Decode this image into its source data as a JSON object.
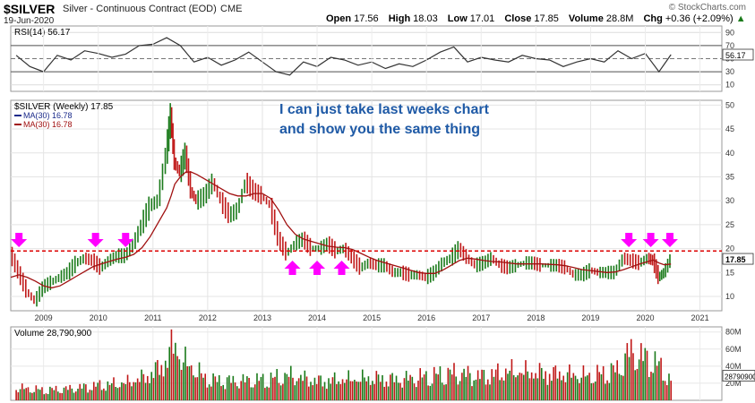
{
  "header": {
    "symbol": "$SILVER",
    "description": "Silver - Continuous Contract (EOD)",
    "exchange": "CME",
    "date": "19-Jun-2020",
    "brand": "© StockCharts.com",
    "ohlc": {
      "open_label": "Open",
      "open": "17.56",
      "high_label": "High",
      "high": "18.03",
      "low_label": "Low",
      "low": "17.01",
      "close_label": "Close",
      "close": "17.85",
      "volume_label": "Volume",
      "volume": "28.8M",
      "chg_label": "Chg",
      "chg": "+0.36 (+2.09%)",
      "chg_arrow": "▲"
    }
  },
  "annotation": {
    "line1": "I can just take last weeks chart",
    "line2": "and show you the same thing"
  },
  "colors": {
    "up": "#1a7a1a",
    "down": "#c01818",
    "ma": "#a01010",
    "rsi": "#333333",
    "arrow": "#ff00ff",
    "dashed": "#dd0000",
    "annotation": "#1f5aa6"
  },
  "chart_data": [
    {
      "type": "line",
      "panel": "rsi",
      "legend": "RSI(14) 56.17",
      "ylim": [
        0,
        100
      ],
      "yticks": [
        10,
        30,
        50,
        70,
        90
      ],
      "last_value_label": "56.17",
      "x": [
        2008.5,
        2008.75,
        2009.0,
        2009.25,
        2009.5,
        2009.75,
        2010.0,
        2010.25,
        2010.5,
        2010.75,
        2011.0,
        2011.25,
        2011.5,
        2011.75,
        2012.0,
        2012.25,
        2012.5,
        2012.75,
        2013.0,
        2013.25,
        2013.5,
        2013.75,
        2014.0,
        2014.25,
        2014.5,
        2014.75,
        2015.0,
        2015.25,
        2015.5,
        2015.75,
        2016.0,
        2016.25,
        2016.5,
        2016.75,
        2017.0,
        2017.25,
        2017.5,
        2017.75,
        2018.0,
        2018.25,
        2018.5,
        2018.75,
        2019.0,
        2019.25,
        2019.5,
        2019.75,
        2020.0,
        2020.25,
        2020.47
      ],
      "values": [
        55,
        38,
        30,
        55,
        48,
        62,
        58,
        52,
        57,
        70,
        72,
        82,
        70,
        45,
        52,
        40,
        48,
        60,
        45,
        30,
        25,
        45,
        38,
        52,
        48,
        40,
        45,
        35,
        42,
        38,
        48,
        60,
        68,
        45,
        52,
        48,
        45,
        55,
        50,
        48,
        38,
        45,
        50,
        45,
        62,
        50,
        58,
        30,
        56.17
      ]
    },
    {
      "type": "line",
      "panel": "price",
      "legend": "$SILVER (Weekly) 17.85",
      "ma_legend_1": "MA(30) 16.78",
      "ma_legend_2": "MA(30) 16.78",
      "ylim": [
        7,
        51
      ],
      "yticks": [
        10,
        15,
        20,
        25,
        30,
        35,
        40,
        45,
        50
      ],
      "xticks": [
        "2009",
        "2010",
        "2011",
        "2012",
        "2013",
        "2014",
        "2015",
        "2016",
        "2017",
        "2018",
        "2019",
        "2020",
        "2021"
      ],
      "xtick_values": [
        2009,
        2010,
        2011,
        2012,
        2013,
        2014,
        2015,
        2016,
        2017,
        2018,
        2019,
        2020,
        2021
      ],
      "last_value_label": "17.85",
      "resistance_level": 19.5,
      "x": [
        2008.4,
        2008.55,
        2008.7,
        2008.85,
        2009.0,
        2009.15,
        2009.3,
        2009.45,
        2009.6,
        2009.75,
        2009.9,
        2010.05,
        2010.2,
        2010.35,
        2010.5,
        2010.65,
        2010.8,
        2010.95,
        2011.1,
        2011.25,
        2011.33,
        2011.4,
        2011.5,
        2011.6,
        2011.7,
        2011.8,
        2011.95,
        2012.1,
        2012.25,
        2012.4,
        2012.55,
        2012.7,
        2012.85,
        2013.0,
        2013.15,
        2013.3,
        2013.45,
        2013.6,
        2013.75,
        2013.9,
        2014.05,
        2014.2,
        2014.35,
        2014.5,
        2014.65,
        2014.8,
        2014.95,
        2015.1,
        2015.25,
        2015.4,
        2015.55,
        2015.7,
        2015.85,
        2016.0,
        2016.15,
        2016.3,
        2016.45,
        2016.6,
        2016.75,
        2016.9,
        2017.05,
        2017.2,
        2017.35,
        2017.5,
        2017.65,
        2017.8,
        2017.95,
        2018.1,
        2018.25,
        2018.4,
        2018.55,
        2018.7,
        2018.85,
        2019.0,
        2019.15,
        2019.3,
        2019.45,
        2019.6,
        2019.75,
        2019.9,
        2020.05,
        2020.15,
        2020.25,
        2020.35,
        2020.47
      ],
      "close": [
        19,
        15,
        11,
        9,
        12,
        13,
        14,
        15,
        17,
        18,
        17.5,
        16,
        17.5,
        18.5,
        18.5,
        21,
        25,
        29,
        30,
        40,
        48,
        38,
        36,
        40,
        32,
        30,
        31,
        34,
        30,
        27,
        28,
        34,
        32,
        31,
        29,
        22,
        19,
        21,
        22,
        20,
        20,
        21,
        19.5,
        20,
        18,
        16,
        17,
        16.5,
        16.5,
        15,
        15,
        14.5,
        14.5,
        14,
        15,
        17,
        18,
        20,
        18,
        16.5,
        17,
        18,
        16.5,
        16,
        16.5,
        17,
        17,
        16.5,
        16.5,
        16.5,
        16,
        14.5,
        14.5,
        15.5,
        15,
        15,
        15,
        18,
        17.5,
        17,
        18,
        17.5,
        14,
        15,
        17.85
      ],
      "ma30": [
        14,
        14.5,
        14,
        13.2,
        12.2,
        11.8,
        12.2,
        13.2,
        14.2,
        15.2,
        16.2,
        16.8,
        17.3,
        17.8,
        18.2,
        18.8,
        20.2,
        22.5,
        25.5,
        28.5,
        31,
        33.5,
        35,
        36,
        36,
        35.5,
        34.5,
        33.5,
        32.5,
        31.5,
        31,
        31,
        31.5,
        31.5,
        30.5,
        28,
        25,
        23,
        22,
        21.5,
        21,
        20.5,
        20.3,
        20.2,
        19.8,
        19,
        18.2,
        17.5,
        17,
        16.5,
        16,
        15.5,
        15,
        14.8,
        14.8,
        15.5,
        16.5,
        17.5,
        18,
        17.8,
        17.5,
        17.3,
        17.2,
        17,
        16.8,
        16.8,
        16.8,
        16.8,
        16.7,
        16.6,
        16.4,
        16,
        15.6,
        15.4,
        15.2,
        15,
        15.1,
        15.6,
        16.2,
        16.8,
        17.3,
        17.6,
        17,
        16.6,
        16.78
      ]
    },
    {
      "type": "bar",
      "panel": "volume",
      "legend": "Volume 28,790,900",
      "yticks": [
        "20M",
        "40M",
        "60M",
        "80M"
      ],
      "ytick_values": [
        20,
        40,
        60,
        80
      ],
      "ylim": [
        0,
        86
      ],
      "last_value_label": "28790900",
      "x": [
        2008.5,
        2009.0,
        2009.5,
        2010.0,
        2010.5,
        2010.9,
        2011.2,
        2011.4,
        2011.5,
        2011.8,
        2012.0,
        2012.5,
        2013.0,
        2013.5,
        2014.0,
        2014.5,
        2015.0,
        2015.5,
        2016.0,
        2016.5,
        2017.0,
        2017.5,
        2018.0,
        2018.5,
        2019.0,
        2019.5,
        2019.7,
        2019.9,
        2020.2,
        2020.47
      ],
      "values": [
        18,
        15,
        17,
        22,
        25,
        35,
        52,
        84,
        60,
        42,
        30,
        28,
        30,
        36,
        28,
        30,
        32,
        30,
        35,
        40,
        35,
        42,
        40,
        38,
        35,
        45,
        70,
        65,
        55,
        28.8
      ]
    }
  ],
  "markers": {
    "down_arrows_x": [
      2008.55,
      2009.95,
      2010.5,
      2019.7,
      2020.1,
      2020.45
    ],
    "up_arrows_x": [
      2013.55,
      2014.0,
      2014.45
    ]
  }
}
